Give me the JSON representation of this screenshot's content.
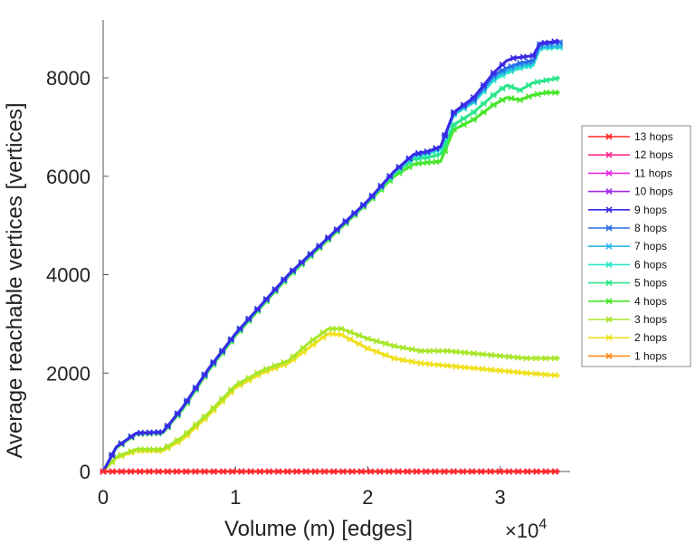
{
  "chart_data": {
    "type": "line",
    "title": "",
    "xlabel": "Volume (m) [edges]",
    "ylabel": "Average reachable vertices [vertices]",
    "x_multiplier": "×10",
    "x_multiplier_exp": "4",
    "xlim": [
      0,
      35000
    ],
    "ylim": [
      0,
      9000
    ],
    "xticks": [
      0,
      10000,
      20000,
      30000
    ],
    "xtick_labels": [
      "0",
      "1",
      "2",
      "3"
    ],
    "yticks": [
      0,
      2000,
      4000,
      6000,
      8000
    ],
    "ytick_labels": [
      "0",
      "2000",
      "4000",
      "6000",
      "8000"
    ],
    "legend_position": "right",
    "series": [
      {
        "name": "13 hops",
        "color": "#ff2a2a",
        "x": [
          0,
          34500
        ],
        "values": [
          0,
          0
        ]
      },
      {
        "name": "12 hops",
        "color": "#ff2a8c",
        "x": [
          0,
          34500
        ],
        "values": [
          0,
          0
        ]
      },
      {
        "name": "11 hops",
        "color": "#e62ae6",
        "x": [
          0,
          34500
        ],
        "values": [
          0,
          0
        ]
      },
      {
        "name": "10 hops",
        "color": "#a02ae6",
        "x": [
          0,
          34500
        ],
        "values": [
          0,
          0
        ]
      },
      {
        "name": "9 hops",
        "color": "#3a2ae6",
        "x": [
          0,
          1000,
          2500,
          4500,
          6000,
          8000,
          10000,
          12000,
          14000,
          16000,
          18000,
          20000,
          22000,
          23500,
          24500,
          25500,
          26500,
          28000,
          29500,
          30500,
          31000,
          32500,
          33000,
          34500
        ],
        "values": [
          0,
          500,
          780,
          800,
          1300,
          2100,
          2800,
          3400,
          4000,
          4500,
          5000,
          5500,
          6100,
          6450,
          6500,
          6600,
          7300,
          7600,
          8100,
          8350,
          8400,
          8450,
          8700,
          8750
        ]
      },
      {
        "name": "8 hops",
        "color": "#2a6ee6",
        "x": [
          0,
          1000,
          2500,
          4500,
          6000,
          8000,
          10000,
          12000,
          14000,
          16000,
          18000,
          20000,
          22000,
          23500,
          24500,
          25500,
          26500,
          28000,
          29500,
          30500,
          31500,
          32500,
          33000,
          34500
        ],
        "values": [
          0,
          500,
          780,
          800,
          1300,
          2100,
          2800,
          3400,
          4000,
          4500,
          5000,
          5500,
          6100,
          6450,
          6500,
          6600,
          7300,
          7550,
          8050,
          8200,
          8300,
          8350,
          8680,
          8720
        ]
      },
      {
        "name": "7 hops",
        "color": "#2ab8e6",
        "x": [
          0,
          1000,
          2500,
          4500,
          6000,
          8000,
          10000,
          12000,
          14000,
          16000,
          18000,
          20000,
          22000,
          23500,
          24500,
          25500,
          26500,
          28000,
          29500,
          30500,
          31500,
          32500,
          33000,
          34500
        ],
        "values": [
          0,
          500,
          780,
          800,
          1300,
          2100,
          2800,
          3400,
          4000,
          4500,
          5000,
          5500,
          6100,
          6420,
          6480,
          6580,
          7280,
          7520,
          8000,
          8150,
          8250,
          8300,
          8620,
          8650
        ]
      },
      {
        "name": "6 hops",
        "color": "#2ae6c8",
        "x": [
          0,
          1000,
          2500,
          4500,
          6000,
          8000,
          10000,
          12000,
          14000,
          16000,
          18000,
          20000,
          22000,
          23500,
          24500,
          25500,
          26500,
          28000,
          29500,
          30500,
          31500,
          32500,
          33000,
          34500
        ],
        "values": [
          0,
          500,
          780,
          800,
          1300,
          2100,
          2800,
          3400,
          4000,
          4500,
          5000,
          5500,
          6080,
          6400,
          6450,
          6550,
          7250,
          7500,
          7950,
          8100,
          8200,
          8250,
          8600,
          8620
        ]
      },
      {
        "name": "5 hops",
        "color": "#2ae68a",
        "x": [
          0,
          1000,
          2500,
          4500,
          6000,
          8000,
          10000,
          12000,
          14000,
          16000,
          18000,
          20000,
          22000,
          23500,
          24500,
          25500,
          26500,
          28000,
          29500,
          30500,
          31500,
          32500,
          33500,
          34500
        ],
        "values": [
          0,
          500,
          770,
          790,
          1280,
          2080,
          2780,
          3380,
          3980,
          4480,
          4980,
          5480,
          6050,
          6350,
          6380,
          6450,
          7050,
          7300,
          7650,
          7850,
          7750,
          7900,
          7950,
          8000
        ]
      },
      {
        "name": "4 hops",
        "color": "#46e62a",
        "x": [
          0,
          1000,
          2500,
          4500,
          6000,
          8000,
          10000,
          12000,
          14000,
          16000,
          18000,
          20000,
          22000,
          23500,
          24500,
          25500,
          26500,
          28000,
          29500,
          30500,
          31500,
          32500,
          33500,
          34500
        ],
        "values": [
          0,
          480,
          760,
          780,
          1260,
          2060,
          2760,
          3360,
          3960,
          4460,
          4960,
          5460,
          6000,
          6250,
          6280,
          6300,
          6950,
          7150,
          7450,
          7600,
          7550,
          7650,
          7700,
          7700
        ]
      },
      {
        "name": "3 hops",
        "color": "#a8e62a",
        "x": [
          0,
          1000,
          2500,
          4500,
          6000,
          8000,
          10000,
          12000,
          14000,
          15500,
          17000,
          18000,
          20000,
          22000,
          24000,
          26000,
          28000,
          30000,
          32000,
          34500
        ],
        "values": [
          0,
          300,
          450,
          450,
          700,
          1200,
          1750,
          2050,
          2250,
          2600,
          2900,
          2900,
          2700,
          2550,
          2450,
          2450,
          2400,
          2350,
          2300,
          2300
        ]
      },
      {
        "name": "2 hops",
        "color": "#f0e01e",
        "x": [
          0,
          1000,
          2500,
          4500,
          6000,
          8000,
          10000,
          12000,
          14000,
          15500,
          17000,
          18000,
          20000,
          22000,
          24000,
          26000,
          28000,
          30000,
          32000,
          34500
        ],
        "values": [
          0,
          280,
          420,
          420,
          650,
          1150,
          1700,
          2000,
          2200,
          2500,
          2800,
          2780,
          2500,
          2300,
          2200,
          2150,
          2100,
          2050,
          2000,
          1950
        ]
      },
      {
        "name": "1 hops",
        "color": "#ff8c1e",
        "x": [
          0,
          34500
        ],
        "values": [
          0,
          0
        ]
      }
    ]
  }
}
